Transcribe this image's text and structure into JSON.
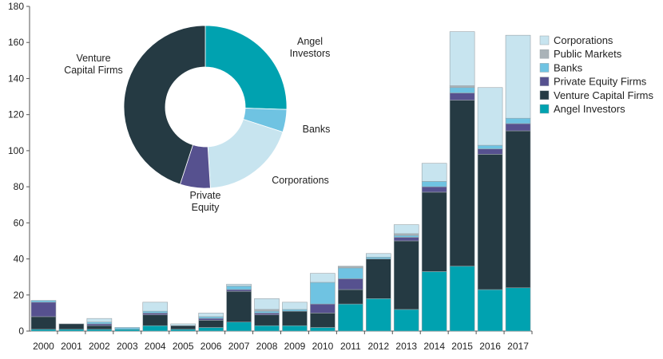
{
  "chart_data": [
    {
      "type": "bar",
      "stacked": true,
      "categories": [
        "2000",
        "2001",
        "2002",
        "2003",
        "2004",
        "2005",
        "2006",
        "2007",
        "2008",
        "2009",
        "2010",
        "2011",
        "2012",
        "2013",
        "2014",
        "2015",
        "2016",
        "2017"
      ],
      "series": [
        {
          "name": "Angel Investors",
          "color": "#00a2b0",
          "values": [
            1,
            1,
            1,
            1,
            3,
            1,
            2,
            5,
            3,
            3,
            2,
            15,
            18,
            12,
            33,
            36,
            23,
            24
          ]
        },
        {
          "name": "Venture Capital Firms",
          "color": "#253a43",
          "values": [
            7,
            3,
            2,
            0,
            6,
            2,
            4,
            17,
            6,
            8,
            8,
            8,
            22,
            38,
            44,
            92,
            75,
            87
          ]
        },
        {
          "name": "Private Equity Firms",
          "color": "#56518f",
          "values": [
            8,
            0,
            1,
            0,
            1,
            0,
            1,
            1,
            1,
            0,
            5,
            6,
            0,
            2,
            3,
            4,
            3,
            4
          ]
        },
        {
          "name": "Banks",
          "color": "#6fc3e2",
          "values": [
            1,
            0,
            1,
            1,
            1,
            0,
            1,
            2,
            1,
            1,
            12,
            6,
            1,
            1,
            3,
            3,
            2,
            3
          ]
        },
        {
          "name": "Public Markets",
          "color": "#aab3b8",
          "values": [
            0,
            0,
            0,
            0,
            0,
            0,
            0,
            0,
            1,
            0,
            0,
            1,
            0,
            1,
            0,
            1,
            0,
            0
          ]
        },
        {
          "name": "Corporations",
          "color": "#c7e4ef",
          "values": [
            0,
            0,
            2,
            0,
            5,
            1,
            2,
            1,
            6,
            4,
            5,
            0,
            2,
            5,
            10,
            30,
            32,
            46
          ]
        }
      ],
      "ylim": [
        0,
        180
      ],
      "yticks": [
        "0",
        "20",
        "40",
        "60",
        "80",
        "100",
        "120",
        "140",
        "160",
        "180"
      ],
      "legend_position": "right",
      "grid": false
    },
    {
      "type": "pie",
      "variant": "donut",
      "slices": [
        {
          "label": "Angel\nInvestors",
          "value": 25.5,
          "color": "#00a2b0"
        },
        {
          "label": "Banks",
          "value": 4.5,
          "color": "#6fc3e2"
        },
        {
          "label": "Corporations",
          "value": 19,
          "color": "#c7e4ef"
        },
        {
          "label": "Private\nEquity",
          "value": 6,
          "color": "#56518f"
        },
        {
          "label": "Venture\nCapital Firms",
          "value": 45,
          "color": "#253a43"
        }
      ]
    }
  ]
}
